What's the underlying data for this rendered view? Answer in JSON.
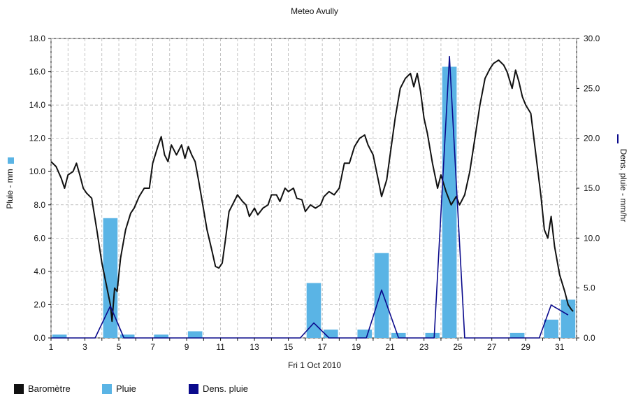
{
  "chart_data": {
    "type": "bar+line",
    "title": "Meteo  Avully",
    "xlabel": "Fri 1 Oct 2010",
    "ylabel_left": "Pluie - mm",
    "ylabel_right": "Dens. pluie - mm/hr",
    "x_ticks": [
      "1",
      "3",
      "5",
      "7",
      "9",
      "11",
      "13",
      "15",
      "17",
      "19",
      "21",
      "23",
      "25",
      "27",
      "29",
      "31"
    ],
    "x_range": [
      1,
      32
    ],
    "y_left_ticks": [
      "0.0",
      "2.0",
      "4.0",
      "6.0",
      "8.0",
      "10.0",
      "12.0",
      "14.0",
      "16.0",
      "18.0"
    ],
    "y_left_range": [
      0,
      18
    ],
    "y_right_ticks": [
      "0.0",
      "5.0",
      "10.0",
      "15.0",
      "20.0",
      "25.0",
      "30.0"
    ],
    "y_right_range": [
      0,
      30
    ],
    "grid": true,
    "colors": {
      "barometre": "#111111",
      "pluie": "#5ab4e5",
      "dens_pluie": "#0a0a8c",
      "grid": "#aaaaaa"
    },
    "legend": [
      {
        "key": "barometre",
        "label": "Baromètre"
      },
      {
        "key": "pluie",
        "label": "Pluie"
      },
      {
        "key": "dens_pluie",
        "label": "Dens. pluie"
      }
    ],
    "pluie_bars": [
      {
        "day": 1.5,
        "value": 0.2
      },
      {
        "day": 4.5,
        "value": 7.2
      },
      {
        "day": 5.5,
        "value": 0.2
      },
      {
        "day": 7.5,
        "value": 0.2
      },
      {
        "day": 9.5,
        "value": 0.4
      },
      {
        "day": 16.5,
        "value": 3.3
      },
      {
        "day": 17.5,
        "value": 0.5
      },
      {
        "day": 19.5,
        "value": 0.5
      },
      {
        "day": 20.5,
        "value": 5.1
      },
      {
        "day": 21.5,
        "value": 0.3
      },
      {
        "day": 23.5,
        "value": 0.3
      },
      {
        "day": 24.5,
        "value": 16.3
      },
      {
        "day": 28.5,
        "value": 0.3
      },
      {
        "day": 30.5,
        "value": 1.1
      },
      {
        "day": 31.5,
        "value": 2.3
      }
    ],
    "dens_pluie": [
      [
        1,
        0
      ],
      [
        3.6,
        0
      ],
      [
        4.5,
        3.2
      ],
      [
        5.3,
        0
      ],
      [
        15.7,
        0
      ],
      [
        16.5,
        1.5
      ],
      [
        17.4,
        0
      ],
      [
        19.6,
        0
      ],
      [
        20.5,
        4.8
      ],
      [
        21.5,
        0
      ],
      [
        23.6,
        0
      ],
      [
        24.5,
        28.2
      ],
      [
        25.4,
        0
      ],
      [
        29.8,
        0
      ],
      [
        30.5,
        3.3
      ],
      [
        31.5,
        2.3
      ]
    ],
    "barometre": [
      [
        1,
        10.6
      ],
      [
        1.3,
        10.3
      ],
      [
        1.6,
        9.6
      ],
      [
        1.8,
        9.0
      ],
      [
        2.0,
        9.8
      ],
      [
        2.3,
        10.0
      ],
      [
        2.5,
        10.5
      ],
      [
        2.7,
        9.8
      ],
      [
        2.9,
        9.0
      ],
      [
        3.1,
        8.7
      ],
      [
        3.4,
        8.4
      ],
      [
        3.7,
        6.5
      ],
      [
        4.0,
        4.5
      ],
      [
        4.3,
        3.0
      ],
      [
        4.5,
        2.0
      ],
      [
        4.6,
        1.0
      ],
      [
        4.75,
        3.0
      ],
      [
        4.9,
        2.8
      ],
      [
        5.1,
        4.8
      ],
      [
        5.4,
        6.5
      ],
      [
        5.7,
        7.5
      ],
      [
        5.9,
        7.8
      ],
      [
        6.2,
        8.5
      ],
      [
        6.5,
        9.0
      ],
      [
        6.8,
        9.0
      ],
      [
        7.0,
        10.5
      ],
      [
        7.3,
        11.5
      ],
      [
        7.5,
        12.1
      ],
      [
        7.7,
        11.0
      ],
      [
        7.9,
        10.6
      ],
      [
        8.1,
        11.6
      ],
      [
        8.4,
        11.0
      ],
      [
        8.7,
        11.6
      ],
      [
        8.9,
        10.8
      ],
      [
        9.1,
        11.5
      ],
      [
        9.3,
        11.0
      ],
      [
        9.5,
        10.6
      ],
      [
        9.7,
        9.5
      ],
      [
        9.9,
        8.3
      ],
      [
        10.2,
        6.5
      ],
      [
        10.5,
        5.2
      ],
      [
        10.7,
        4.3
      ],
      [
        10.9,
        4.2
      ],
      [
        11.1,
        4.5
      ],
      [
        11.3,
        6.0
      ],
      [
        11.5,
        7.6
      ],
      [
        11.8,
        8.2
      ],
      [
        12.0,
        8.6
      ],
      [
        12.3,
        8.2
      ],
      [
        12.5,
        8.0
      ],
      [
        12.7,
        7.3
      ],
      [
        13.0,
        7.8
      ],
      [
        13.2,
        7.4
      ],
      [
        13.5,
        7.8
      ],
      [
        13.8,
        8.0
      ],
      [
        14.0,
        8.6
      ],
      [
        14.3,
        8.6
      ],
      [
        14.5,
        8.2
      ],
      [
        14.8,
        9.0
      ],
      [
        15.0,
        8.8
      ],
      [
        15.3,
        9.0
      ],
      [
        15.5,
        8.4
      ],
      [
        15.8,
        8.3
      ],
      [
        16.0,
        7.6
      ],
      [
        16.3,
        8.0
      ],
      [
        16.6,
        7.8
      ],
      [
        16.9,
        8.0
      ],
      [
        17.1,
        8.5
      ],
      [
        17.4,
        8.8
      ],
      [
        17.7,
        8.6
      ],
      [
        18.0,
        9.0
      ],
      [
        18.3,
        10.5
      ],
      [
        18.6,
        10.5
      ],
      [
        18.9,
        11.5
      ],
      [
        19.2,
        12.0
      ],
      [
        19.5,
        12.2
      ],
      [
        19.7,
        11.6
      ],
      [
        20.0,
        11.0
      ],
      [
        20.3,
        9.5
      ],
      [
        20.5,
        8.5
      ],
      [
        20.8,
        9.5
      ],
      [
        21.0,
        11.0
      ],
      [
        21.3,
        13.2
      ],
      [
        21.6,
        15.0
      ],
      [
        21.9,
        15.6
      ],
      [
        22.2,
        15.9
      ],
      [
        22.4,
        15.1
      ],
      [
        22.6,
        15.9
      ],
      [
        22.8,
        14.8
      ],
      [
        23.0,
        13.2
      ],
      [
        23.2,
        12.3
      ],
      [
        23.5,
        10.5
      ],
      [
        23.8,
        9.0
      ],
      [
        24.0,
        9.8
      ],
      [
        24.3,
        8.8
      ],
      [
        24.6,
        8.0
      ],
      [
        24.9,
        8.5
      ],
      [
        25.1,
        8.0
      ],
      [
        25.4,
        8.6
      ],
      [
        25.7,
        10.0
      ],
      [
        26.0,
        12.0
      ],
      [
        26.3,
        14.0
      ],
      [
        26.6,
        15.6
      ],
      [
        26.9,
        16.2
      ],
      [
        27.1,
        16.5
      ],
      [
        27.4,
        16.7
      ],
      [
        27.7,
        16.4
      ],
      [
        27.9,
        16.0
      ],
      [
        28.2,
        15.0
      ],
      [
        28.4,
        16.1
      ],
      [
        28.6,
        15.4
      ],
      [
        28.8,
        14.5
      ],
      [
        29.0,
        14.0
      ],
      [
        29.3,
        13.5
      ],
      [
        29.6,
        11.0
      ],
      [
        29.9,
        8.5
      ],
      [
        30.1,
        6.5
      ],
      [
        30.3,
        6.0
      ],
      [
        30.5,
        7.3
      ],
      [
        30.7,
        5.5
      ],
      [
        31.0,
        3.8
      ],
      [
        31.3,
        2.8
      ],
      [
        31.5,
        2.0
      ],
      [
        31.7,
        1.7
      ],
      [
        31.8,
        1.6
      ]
    ]
  }
}
